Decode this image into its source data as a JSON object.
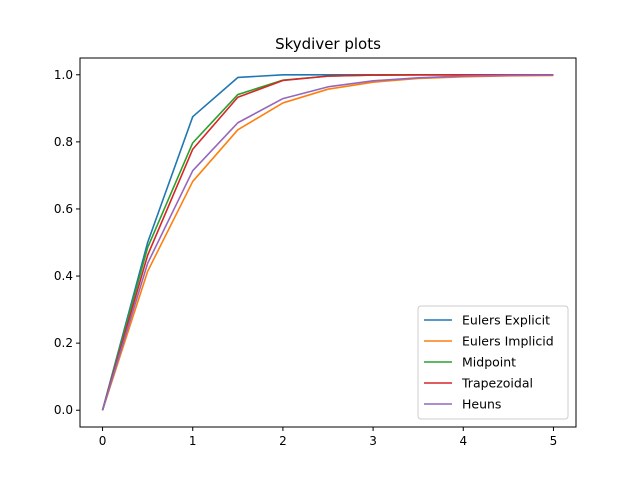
{
  "chart_data": {
    "type": "line",
    "title": "Skydiver plots",
    "xlabel": "",
    "ylabel": "",
    "xlim": [
      -0.25,
      5.25
    ],
    "ylim": [
      -0.05,
      1.05
    ],
    "xticks": [
      0,
      1,
      2,
      3,
      4,
      5
    ],
    "yticks": [
      0.0,
      0.2,
      0.4,
      0.6,
      0.8,
      1.0
    ],
    "xtick_labels": [
      "0",
      "1",
      "2",
      "3",
      "4",
      "5"
    ],
    "ytick_labels": [
      "0.0",
      "0.2",
      "0.4",
      "0.6",
      "0.8",
      "1.0"
    ],
    "grid": false,
    "legend_position": "lower-right",
    "x": [
      0,
      0.5,
      1.0,
      1.5,
      2.0,
      2.5,
      3.0,
      3.5,
      4.0,
      4.5,
      5.0
    ],
    "series": [
      {
        "name": "Eulers Explicit",
        "color": "#1f77b4",
        "values": [
          0,
          0.5,
          0.875,
          0.992,
          1.0,
          1.0,
          1.0,
          1.0,
          1.0,
          1.0,
          1.0
        ]
      },
      {
        "name": "Eulers Implicid",
        "color": "#ff7f0e",
        "values": [
          0,
          0.414,
          0.682,
          0.836,
          0.916,
          0.957,
          0.978,
          0.989,
          0.994,
          0.997,
          0.998
        ]
      },
      {
        "name": "Midpoint",
        "color": "#2ca02c",
        "values": [
          0,
          0.485,
          0.797,
          0.941,
          0.984,
          0.996,
          0.999,
          1.0,
          1.0,
          1.0,
          1.0
        ]
      },
      {
        "name": "Trapezoidal",
        "color": "#d62728",
        "values": [
          0,
          0.462,
          0.778,
          0.933,
          0.983,
          0.996,
          0.999,
          1.0,
          1.0,
          1.0,
          1.0
        ]
      },
      {
        "name": "Heuns",
        "color": "#9467bd",
        "values": [
          0,
          0.438,
          0.714,
          0.857,
          0.929,
          0.964,
          0.982,
          0.991,
          0.996,
          0.998,
          0.999
        ]
      }
    ]
  }
}
